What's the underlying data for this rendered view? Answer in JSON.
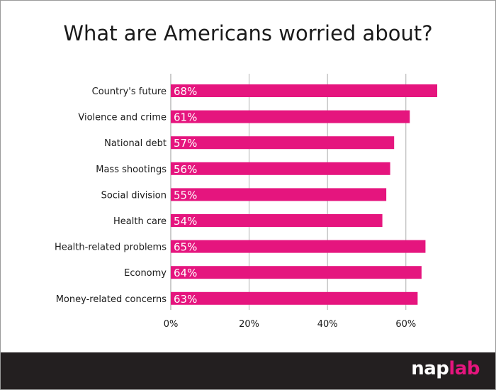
{
  "chart_data": {
    "type": "bar",
    "orientation": "horizontal",
    "title": "What are Americans worried about?",
    "categories": [
      "Country's future",
      "Violence and crime",
      "National debt",
      "Mass shootings",
      "Social division",
      "Health care",
      "Health-related problems",
      "Economy",
      "Money-related concerns"
    ],
    "values": [
      68,
      61,
      57,
      56,
      55,
      54,
      65,
      64,
      63
    ],
    "value_labels": [
      "68%",
      "61%",
      "57%",
      "56%",
      "55%",
      "54%",
      "65%",
      "64%",
      "63%"
    ],
    "xlim": [
      0,
      70
    ],
    "xticks": [
      0,
      20,
      40,
      60
    ],
    "xtick_labels": [
      "0%",
      "20%",
      "40%",
      "60%"
    ],
    "grid": "vertical",
    "bar_color": "#e5157e"
  },
  "footer": {
    "logo_part1": "nap",
    "logo_part2": "lab",
    "background": "#231f20",
    "accent": "#e5157e"
  }
}
